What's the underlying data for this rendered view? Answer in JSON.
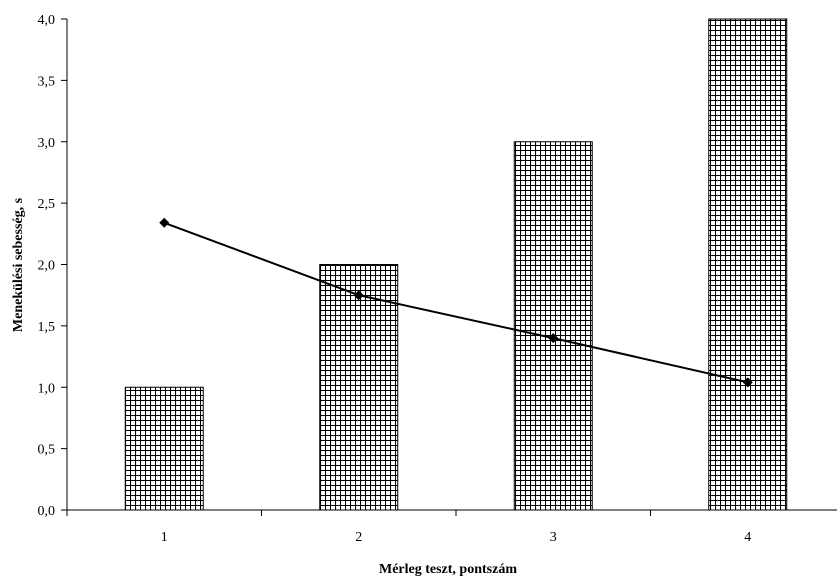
{
  "chart_data": {
    "type": "bar",
    "title": "",
    "xlabel": "Mérleg teszt, pontszám",
    "ylabel": "Menekülési sebesség, s",
    "categories": [
      "1",
      "2",
      "3",
      "4"
    ],
    "ylim": [
      0,
      4
    ],
    "yticks": [
      "0,0",
      "0,5",
      "1,0",
      "1,5",
      "2,0",
      "2,5",
      "3,0",
      "3,5",
      "4,0"
    ],
    "grid": false,
    "legend": "none",
    "series": [
      {
        "type": "bar",
        "values": [
          1.0,
          2.0,
          3.0,
          4.0
        ],
        "pattern": "crosshatch"
      },
      {
        "type": "line",
        "marker": "diamond",
        "values": [
          2.34,
          1.75,
          1.4,
          1.04
        ]
      }
    ],
    "colors": {
      "ink": "#000000",
      "background": "#ffffff"
    }
  }
}
